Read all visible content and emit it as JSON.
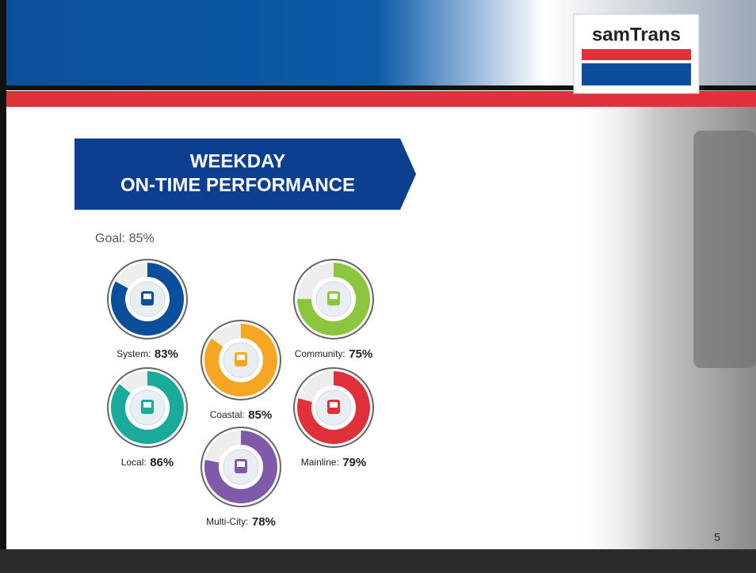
{
  "header": {
    "logo": "samTrans"
  },
  "banner": {
    "line1": "WEEKDAY",
    "line2": "ON-TIME PERFORMANCE"
  },
  "goal": "Goal: 85%",
  "gauges": [
    {
      "name": "System:",
      "value": 83,
      "value_label": "83%",
      "color": "#0b4f9c"
    },
    {
      "name": "Coastal:",
      "value": 85,
      "value_label": "85%",
      "color": "#f5a623"
    },
    {
      "name": "Community:",
      "value": 75,
      "value_label": "75%",
      "color": "#8cc63f"
    },
    {
      "name": "Local:",
      "value": 86,
      "value_label": "86%",
      "color": "#1aaa9a"
    },
    {
      "name": "Mainline:",
      "value": 79,
      "value_label": "79%",
      "color": "#e0313b"
    },
    {
      "name": "Multi-City:",
      "value": 78,
      "value_label": "78%",
      "color": "#7f5aa8"
    }
  ],
  "page_number": "5"
}
